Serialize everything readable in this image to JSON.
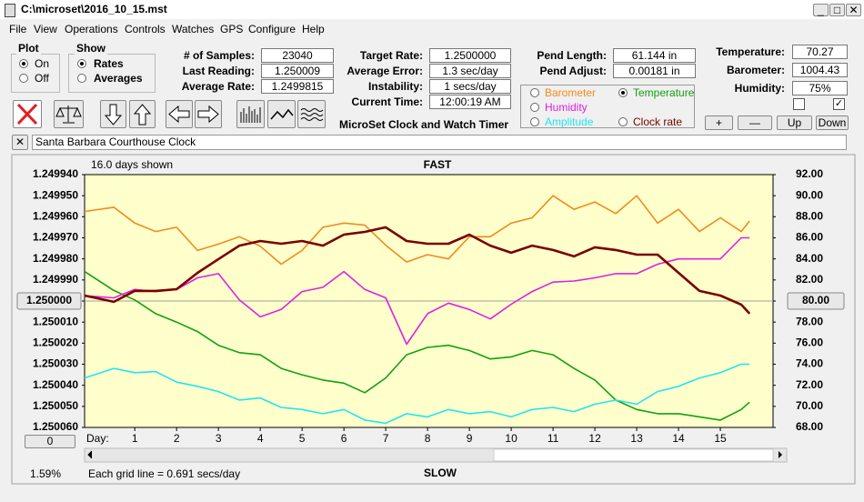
{
  "window": {
    "title": "C:\\microset\\2016_10_15.mst"
  },
  "menu": [
    "File",
    "View",
    "Operations",
    "Controls",
    "Watches",
    "GPS",
    "Configure",
    "Help"
  ],
  "plot_group": {
    "label": "Plot",
    "options": [
      "On",
      "Off"
    ]
  },
  "show_group": {
    "label": "Show",
    "options": [
      "Rates",
      "Averages"
    ]
  },
  "fields_a": [
    {
      "label": "# of Samples:",
      "value": "23040"
    },
    {
      "label": "Last Reading:",
      "value": "1.250009"
    },
    {
      "label": "Average Rate:",
      "value": "1.2499815"
    }
  ],
  "fields_b": [
    {
      "label": "Target Rate:",
      "value": "1.2500000"
    },
    {
      "label": "Average Error:",
      "value": "1.3 sec/day"
    },
    {
      "label": "Instability:",
      "value": "1 secs/day"
    },
    {
      "label": "Current Time:",
      "value": "12:00:19 AM"
    }
  ],
  "fields_c": [
    {
      "label": "Pend Length:",
      "value": "61.144 in"
    },
    {
      "label": "Pend Adjust:",
      "value": "0.00181 in"
    }
  ],
  "fields_d": [
    {
      "label": "Temperature:",
      "value": "70.27"
    },
    {
      "label": "Barometer:",
      "value": "1004.43"
    },
    {
      "label": "Humidity:",
      "value": "75%"
    }
  ],
  "app_name": "MicroSet Clock and Watch Timer",
  "small_buttons": [
    "+",
    "—",
    "Up",
    "Down"
  ],
  "clock_name": "Santa Barbara Courthouse Clock",
  "status": {
    "percent": "1.59%",
    "zero": "0",
    "grid_note": "Each grid line = 0.691 secs/day"
  },
  "chart_data": {
    "type": "line",
    "top_note": "16.0 days shown",
    "top_label": "FAST",
    "bottom_label": "SLOW",
    "x_label": "Day:",
    "x": [
      -0.2,
      0.5,
      1,
      1.5,
      2,
      2.5,
      3,
      3.5,
      4,
      4.5,
      5,
      5.5,
      6,
      6.5,
      7,
      7.5,
      8,
      8.5,
      9,
      9.5,
      10,
      10.5,
      11,
      11.5,
      12,
      12.5,
      13,
      13.5,
      14,
      14.5,
      15,
      15.5,
      15.7
    ],
    "xlim": [
      -0.2,
      16.26
    ],
    "xticks": [
      1,
      2,
      3,
      4,
      5,
      6,
      7,
      8,
      9,
      10,
      11,
      12,
      13,
      14,
      15
    ],
    "ylim": [
      1.25006,
      1.24994
    ],
    "yticks": [
      {
        "value": 1.24994,
        "label": "1.249940"
      },
      {
        "value": 1.24995,
        "label": "1.249950"
      },
      {
        "value": 1.24996,
        "label": "1.249960"
      },
      {
        "value": 1.24997,
        "label": "1.249970"
      },
      {
        "value": 1.24998,
        "label": "1.249980"
      },
      {
        "value": 1.24999,
        "label": "1.249990"
      },
      {
        "value": 1.25,
        "label": "1.250000"
      },
      {
        "value": 1.25001,
        "label": "1.250010"
      },
      {
        "value": 1.25002,
        "label": "1.250020"
      },
      {
        "value": 1.25003,
        "label": "1.250030"
      },
      {
        "value": 1.25004,
        "label": "1.250040"
      },
      {
        "value": 1.25005,
        "label": "1.250050"
      },
      {
        "value": 1.25006,
        "label": "1.250060"
      }
    ],
    "y2lim": [
      68,
      92
    ],
    "y2ticks": [
      {
        "value": 92,
        "label": "92.00"
      },
      {
        "value": 90,
        "label": "90.00"
      },
      {
        "value": 88,
        "label": "88.00"
      },
      {
        "value": 86,
        "label": "86.00"
      },
      {
        "value": 84,
        "label": "84.00"
      },
      {
        "value": 82,
        "label": "82.00"
      },
      {
        "value": 80,
        "label": "80.00"
      },
      {
        "value": 78,
        "label": "78.00"
      },
      {
        "value": 76,
        "label": "76.00"
      },
      {
        "value": 74,
        "label": "74.00"
      },
      {
        "value": 72,
        "label": "72.00"
      },
      {
        "value": 70,
        "label": "70.00"
      },
      {
        "value": 68,
        "label": "68.00"
      }
    ],
    "series": [
      {
        "name": "Barometer",
        "color": "#f28a1c",
        "axis": "y2",
        "values": [
          88.5,
          88.9,
          87.4,
          86.6,
          87.0,
          84.8,
          85.4,
          86.1,
          85.2,
          83.5,
          84.8,
          87.0,
          87.4,
          87.2,
          85.3,
          83.7,
          84.4,
          84.0,
          86.1,
          86.1,
          87.4,
          87.9,
          90.0,
          88.7,
          89.4,
          88.3,
          90.0,
          87.4,
          88.7,
          86.6,
          87.9,
          86.6,
          87.6
        ]
      },
      {
        "name": "Temperature",
        "color": "#12a012",
        "axis": "y2",
        "values": [
          82.8,
          81.0,
          80.1,
          78.8,
          78.0,
          77.1,
          75.8,
          75.1,
          74.9,
          73.6,
          73.0,
          72.5,
          72.2,
          71.3,
          72.7,
          74.9,
          75.6,
          75.8,
          75.3,
          74.5,
          74.7,
          75.3,
          74.9,
          73.6,
          72.5,
          70.6,
          69.7,
          69.3,
          69.3,
          69.0,
          68.7,
          69.7,
          70.4
        ]
      },
      {
        "name": "Humidity",
        "color": "#e020e0",
        "axis": "y2",
        "values": [
          80.5,
          80.3,
          81.1,
          80.9,
          81.1,
          82.2,
          82.6,
          80.1,
          78.5,
          79.2,
          80.9,
          81.3,
          82.8,
          81.1,
          80.3,
          75.9,
          78.8,
          79.8,
          79.2,
          78.3,
          79.7,
          80.9,
          81.8,
          81.9,
          82.2,
          82.6,
          82.6,
          83.5,
          84.0,
          84.0,
          84.0,
          86.0,
          86.0
        ]
      },
      {
        "name": "Amplitude",
        "color": "#22e4f2",
        "axis": "y2",
        "values": [
          72.7,
          73.6,
          73.2,
          73.3,
          72.3,
          71.9,
          71.4,
          70.6,
          70.8,
          69.9,
          69.7,
          69.3,
          69.7,
          68.7,
          68.4,
          69.3,
          69.0,
          69.7,
          69.3,
          69.5,
          69.0,
          69.7,
          69.9,
          69.5,
          70.2,
          70.6,
          70.2,
          71.4,
          71.9,
          72.7,
          73.2,
          74.0,
          74.0
        ]
      },
      {
        "name": "Clock rate",
        "color": "#7a0000",
        "values": [
          1.2499974,
          1.2500004,
          1.2499952,
          1.2499952,
          1.2499944,
          1.2499866,
          1.2499801,
          1.2499737,
          1.2499715,
          1.2499728,
          1.2499715,
          1.2499737,
          1.2499685,
          1.2499672,
          1.249965,
          1.2499715,
          1.2499728,
          1.2499728,
          1.2499685,
          1.2499737,
          1.2499771,
          1.2499737,
          1.2499758,
          1.2499788,
          1.2499745,
          1.2499758,
          1.249978,
          1.249978,
          1.2499866,
          1.2499952,
          1.2499974,
          1.2500017,
          1.250006
        ]
      }
    ]
  }
}
